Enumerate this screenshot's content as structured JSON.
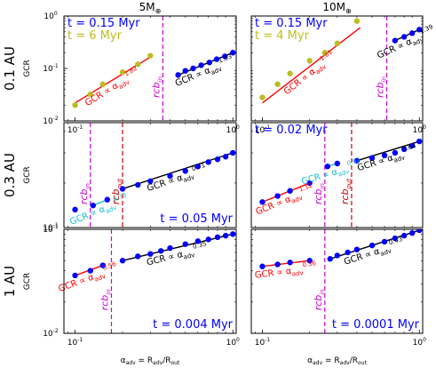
{
  "columns": [
    {
      "label": "5",
      "sub": "⊕",
      "prefix": "M"
    },
    {
      "label": "10",
      "sub": "⊕",
      "prefix": "M"
    }
  ],
  "rows": [
    {
      "label": "0.1 AU"
    },
    {
      "label": "0.3 AU"
    },
    {
      "label": "1 AU"
    }
  ],
  "y_axis_label": "GCR",
  "x_axis_label": "α_adv = R_adv/R_out",
  "colors": {
    "blue": "#0000ff",
    "red": "#ff0000",
    "olive": "#bcbd22",
    "cyan": "#17becf",
    "magenta": "#cc00cc",
    "darkred": "#cc0000",
    "black": "#000000"
  },
  "chart_data": [
    {
      "type": "scatter",
      "row": 0,
      "col": 0,
      "xlim": [
        0.085,
        1.05
      ],
      "ylim": [
        0.01,
        1.0
      ],
      "xscale": "log",
      "yscale": "log",
      "x_ticks": [
        {
          "v": 0.1,
          "l": "10",
          "e": "-1"
        },
        {
          "v": 1.0,
          "l": "10",
          "e": "0"
        }
      ],
      "y_ticks": [
        {
          "v": 0.01,
          "l": "10",
          "e": "-2"
        },
        {
          "v": 0.1,
          "l": "10",
          "e": "-1"
        },
        {
          "v": 1.0,
          "l": "10",
          "e": "0"
        }
      ],
      "texts": [
        {
          "t": "t = 0.15 Myr",
          "color": "#0000ff",
          "pos": "tl1"
        },
        {
          "t": "t = 6 Myr",
          "color": "#bcbd22",
          "pos": "tl2"
        }
      ],
      "vlines": [
        {
          "x": 0.36,
          "color": "#cc00cc",
          "label": "rcb",
          "sub": "in"
        }
      ],
      "series": [
        {
          "color": "#bcbd22",
          "x": [
            0.1,
            0.125,
            0.15,
            0.2,
            0.25,
            0.3
          ],
          "y": [
            0.02,
            0.032,
            0.05,
            0.085,
            0.12,
            0.175
          ]
        },
        {
          "color": "#0000ff",
          "x": [
            0.45,
            0.5,
            0.56,
            0.63,
            0.71,
            0.79,
            0.89,
            1.0
          ],
          "y": [
            0.075,
            0.09,
            0.1,
            0.115,
            0.13,
            0.15,
            0.17,
            0.2
          ]
        }
      ],
      "fits": [
        {
          "color": "#ff0000",
          "x": [
            0.1,
            0.31
          ],
          "y": [
            0.022,
            0.175
          ],
          "label": "GCR ∝ α",
          "sub": "adv",
          "exp": "1.82"
        },
        {
          "color": "#000000",
          "x": [
            0.45,
            1.0
          ],
          "y": [
            0.075,
            0.2
          ],
          "label": "GCR ∝ α",
          "sub": "adv",
          "exp": "1.03"
        }
      ]
    },
    {
      "type": "scatter",
      "row": 0,
      "col": 1,
      "xlim": [
        0.085,
        1.05
      ],
      "ylim": [
        0.01,
        1.0
      ],
      "xscale": "log",
      "yscale": "log",
      "x_ticks": [
        {
          "v": 0.1,
          "l": "10",
          "e": "-1"
        },
        {
          "v": 1.0,
          "l": "10",
          "e": "0"
        }
      ],
      "y_ticks": [],
      "texts": [
        {
          "t": "t = 0.15 Myr",
          "color": "#0000ff",
          "pos": "tl1"
        },
        {
          "t": "t = 4 Myr",
          "color": "#bcbd22",
          "pos": "tl2"
        }
      ],
      "vlines": [
        {
          "x": 0.62,
          "color": "#cc00cc",
          "label": "rcb",
          "sub": "in"
        }
      ],
      "series": [
        {
          "color": "#bcbd22",
          "x": [
            0.1,
            0.125,
            0.15,
            0.2,
            0.25,
            0.3,
            0.4
          ],
          "y": [
            0.028,
            0.05,
            0.08,
            0.14,
            0.2,
            0.3,
            0.8
          ]
        },
        {
          "color": "#0000ff",
          "x": [
            0.7,
            0.8,
            0.9,
            1.0
          ],
          "y": [
            0.34,
            0.4,
            0.47,
            0.55
          ]
        }
      ],
      "fits": [
        {
          "color": "#ff0000",
          "x": [
            0.1,
            0.42
          ],
          "y": [
            0.022,
            0.6
          ],
          "label": "GCR ∝ α",
          "sub": "adv",
          "exp": "1.61"
        },
        {
          "color": "#000000",
          "x": [
            0.7,
            1.0
          ],
          "y": [
            0.34,
            0.55
          ],
          "label": "GCR ∝ α",
          "sub": "adv",
          "exp": "1.39"
        }
      ]
    },
    {
      "type": "scatter",
      "row": 1,
      "col": 0,
      "xlim": [
        0.085,
        1.05
      ],
      "ylim": [
        0.11,
        0.45
      ],
      "xscale": "log",
      "yscale": "log",
      "x_ticks": [],
      "y_ticks": [
        {
          "v": 0.1,
          "l": "10",
          "e": "-1"
        }
      ],
      "texts": [
        {
          "t": "t = 0.05 Myr",
          "color": "#0000ff",
          "pos": "br"
        }
      ],
      "vlines": [
        {
          "x": 0.125,
          "color": "#cc00cc",
          "label": "rcb",
          "sub": "in"
        },
        {
          "x": 0.2,
          "color": "#cc0000",
          "label": "rcb",
          "sub": "out"
        }
      ],
      "series": [
        {
          "color": "#0000ff",
          "x": [
            0.1
          ],
          "y": [
            0.14
          ]
        },
        {
          "color": "#0000ff",
          "x": [
            0.13,
            0.16
          ],
          "y": [
            0.148,
            0.16
          ]
        },
        {
          "color": "#0000ff",
          "x": [
            0.2,
            0.25,
            0.3,
            0.4,
            0.5,
            0.6,
            0.7,
            0.8,
            0.9,
            1.0
          ],
          "y": [
            0.185,
            0.195,
            0.205,
            0.22,
            0.235,
            0.25,
            0.265,
            0.275,
            0.285,
            0.3
          ]
        }
      ],
      "fits": [
        {
          "color": "#17becf",
          "x": [
            0.13,
            0.16
          ],
          "y": [
            0.148,
            0.16
          ],
          "label": "GCR ∝ α",
          "sub": "adv",
          "exp": "0.73"
        },
        {
          "color": "#000000",
          "x": [
            0.2,
            1.0
          ],
          "y": [
            0.185,
            0.3
          ],
          "label": "GCR ∝ α",
          "sub": "adv",
          "exp": "0.71"
        }
      ]
    },
    {
      "type": "scatter",
      "row": 1,
      "col": 1,
      "xlim": [
        0.085,
        1.05
      ],
      "ylim": [
        0.11,
        0.45
      ],
      "xscale": "log",
      "yscale": "log",
      "x_ticks": [],
      "y_ticks": [],
      "texts": [
        {
          "t": "t = 0.02 Myr",
          "color": "#0000ff",
          "pos": "tl1"
        }
      ],
      "vlines": [
        {
          "x": 0.25,
          "color": "#cc00cc",
          "label": "rcb",
          "sub": "in"
        },
        {
          "x": 0.37,
          "color": "#cc0000",
          "label": "rcb",
          "sub": "out"
        }
      ],
      "series": [
        {
          "color": "#0000ff",
          "x": [
            0.1,
            0.125,
            0.15,
            0.2
          ],
          "y": [
            0.155,
            0.168,
            0.18,
            0.2
          ]
        },
        {
          "color": "#0000ff",
          "x": [
            0.26,
            0.3
          ],
          "y": [
            0.25,
            0.26
          ]
        },
        {
          "color": "#0000ff",
          "x": [
            0.4,
            0.5,
            0.6,
            0.7,
            0.8,
            0.9,
            1.0
          ],
          "y": [
            0.27,
            0.28,
            0.29,
            0.3,
            0.315,
            0.33,
            0.35
          ]
        }
      ],
      "fits": [
        {
          "color": "#ff0000",
          "x": [
            0.1,
            0.2
          ],
          "y": [
            0.155,
            0.2
          ],
          "label": "GCR ∝ α",
          "sub": "adv",
          "exp": "1.12"
        },
        {
          "color": "#17becf",
          "x": [
            0.26,
            0.3
          ],
          "y": [
            0.25,
            0.26
          ],
          "label": "GCR ∝ α",
          "sub": "adv",
          "exp": "0.92"
        },
        {
          "color": "#000000",
          "x": [
            0.4,
            1.0
          ],
          "y": [
            0.27,
            0.35
          ],
          "label": "GCR ∝ α",
          "sub": "adv",
          "exp": "0.64"
        }
      ]
    },
    {
      "type": "scatter",
      "row": 2,
      "col": 0,
      "xlim": [
        0.085,
        1.05
      ],
      "ylim": [
        0.01,
        0.1
      ],
      "xscale": "log",
      "yscale": "log",
      "x_ticks": [
        {
          "v": 0.1,
          "l": "10",
          "e": "-1"
        },
        {
          "v": 1.0,
          "l": "10",
          "e": "0"
        }
      ],
      "y_ticks": [
        {
          "v": 0.01,
          "l": "10",
          "e": "-2"
        },
        {
          "v": 0.1,
          "l": "10",
          "e": "-1"
        }
      ],
      "texts": [
        {
          "t": "t = 0.004 Myr",
          "color": "#0000ff",
          "pos": "br"
        }
      ],
      "vlines": [
        {
          "x": 0.17,
          "color": "#cc00cc",
          "label": "rcb",
          "sub": "in"
        }
      ],
      "series": [
        {
          "color": "#0000ff",
          "x": [
            0.1,
            0.125,
            0.15
          ],
          "y": [
            0.036,
            0.04,
            0.045
          ]
        },
        {
          "color": "#0000ff",
          "x": [
            0.2,
            0.25,
            0.3,
            0.35,
            0.4,
            0.5,
            0.6,
            0.7,
            0.8,
            0.9,
            1.0
          ],
          "y": [
            0.05,
            0.055,
            0.058,
            0.062,
            0.066,
            0.072,
            0.077,
            0.08,
            0.084,
            0.087,
            0.09
          ]
        }
      ],
      "fits": [
        {
          "color": "#ff0000",
          "x": [
            0.1,
            0.15
          ],
          "y": [
            0.036,
            0.045
          ],
          "label": "GCR ∝ α",
          "sub": "adv",
          "exp": "0.56"
        },
        {
          "color": "#000000",
          "x": [
            0.2,
            1.0
          ],
          "y": [
            0.05,
            0.09
          ],
          "label": "GCR ∝ α",
          "sub": "adv",
          "exp": "0.35"
        }
      ]
    },
    {
      "type": "scatter",
      "row": 2,
      "col": 1,
      "xlim": [
        0.085,
        1.05
      ],
      "ylim": [
        0.01,
        0.1
      ],
      "xscale": "log",
      "yscale": "log",
      "x_ticks": [
        {
          "v": 0.1,
          "l": "10",
          "e": "-1"
        },
        {
          "v": 1.0,
          "l": "10",
          "e": "0"
        }
      ],
      "y_ticks": [],
      "texts": [
        {
          "t": "t = 0.0001 Myr",
          "color": "#0000ff",
          "pos": "br"
        }
      ],
      "vlines": [
        {
          "x": 0.25,
          "color": "#cc00cc",
          "label": "rcb",
          "sub": "in"
        }
      ],
      "series": [
        {
          "color": "#0000ff",
          "x": [
            0.1,
            0.125,
            0.15,
            0.2
          ],
          "y": [
            0.044,
            0.046,
            0.048,
            0.05
          ]
        },
        {
          "color": "#0000ff",
          "x": [
            0.27,
            0.3,
            0.35,
            0.4,
            0.5,
            0.6,
            0.7,
            0.8,
            0.9,
            1.0
          ],
          "y": [
            0.052,
            0.056,
            0.06,
            0.064,
            0.07,
            0.076,
            0.082,
            0.087,
            0.092,
            0.098
          ]
        }
      ],
      "fits": [
        {
          "color": "#ff0000",
          "x": [
            0.1,
            0.2
          ],
          "y": [
            0.044,
            0.05
          ],
          "label": "GCR ∝ α",
          "sub": "adv",
          "exp": "0.36"
        },
        {
          "color": "#000000",
          "x": [
            0.27,
            1.0
          ],
          "y": [
            0.052,
            0.098
          ],
          "label": "GCR ∝ α",
          "sub": "adv",
          "exp": "0.43"
        }
      ]
    }
  ]
}
